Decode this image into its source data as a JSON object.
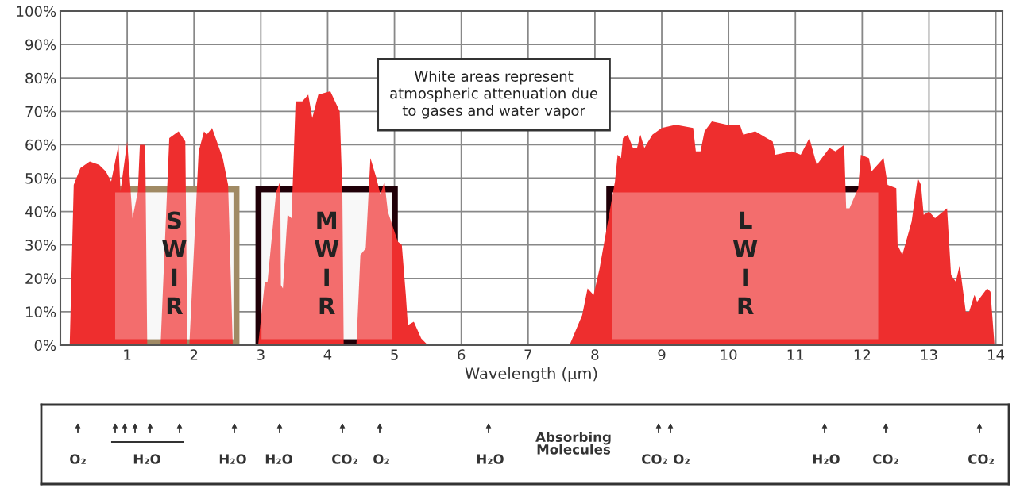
{
  "chart_data": [
    {
      "type": "area",
      "xlabel": "Wavelength (µm)",
      "color": "#ee2e2e",
      "x": [
        0.14,
        0.2,
        0.3,
        0.44,
        0.58,
        0.68,
        0.76,
        0.87,
        0.9,
        1.0,
        1.08,
        1.16,
        1.19,
        1.27,
        1.3,
        1.5,
        1.63,
        1.77,
        1.87,
        1.9,
        1.93,
        2.07,
        2.15,
        2.19,
        2.27,
        2.43,
        2.51,
        2.58,
        2.96,
        3.06,
        3.1,
        3.23,
        3.29,
        3.3,
        3.33,
        3.4,
        3.46,
        3.52,
        3.62,
        3.71,
        3.77,
        3.86,
        4.04,
        4.18,
        4.22,
        4.24,
        4.43,
        4.49,
        4.57,
        4.64,
        4.73,
        4.79,
        4.85,
        4.9,
        5.05,
        5.11,
        5.17,
        5.2,
        5.29,
        5.4,
        5.5,
        7.62,
        7.81,
        7.89,
        7.98,
        8.07,
        8.3,
        8.34,
        8.39,
        8.42,
        8.49,
        8.57,
        8.63,
        8.68,
        8.74,
        8.86,
        9.0,
        9.21,
        9.47,
        9.51,
        9.58,
        9.64,
        9.75,
        9.98,
        10.17,
        10.22,
        10.4,
        10.57,
        10.66,
        10.7,
        10.95,
        11.08,
        11.21,
        11.32,
        11.51,
        11.6,
        11.73,
        11.76,
        11.81,
        11.94,
        11.98,
        12.1,
        12.14,
        12.32,
        12.38,
        12.51,
        12.53,
        12.6,
        12.74,
        12.83,
        12.88,
        12.92,
        13.0,
        13.09,
        13.27,
        13.33,
        13.4,
        13.46,
        13.55,
        13.6,
        13.68,
        13.72,
        13.87,
        13.92,
        13.98
      ],
      "values": [
        0,
        48,
        53,
        55,
        54,
        52,
        49,
        60,
        46,
        61,
        38,
        46,
        60,
        60,
        0,
        0,
        62,
        64,
        61,
        0,
        0,
        58,
        64,
        63,
        65,
        56,
        48,
        0,
        0,
        19,
        19,
        46,
        49,
        18,
        17,
        39,
        38,
        73,
        73,
        75,
        68,
        75,
        76,
        70,
        46,
        0,
        0,
        27,
        29,
        56,
        50,
        45,
        49,
        40,
        31,
        30,
        15,
        6,
        7,
        2,
        0,
        0,
        9,
        17,
        15,
        23,
        49,
        57,
        56,
        62,
        63,
        59,
        59,
        63,
        59,
        63,
        65,
        66,
        65,
        58,
        58,
        64,
        67,
        66,
        66,
        63,
        64,
        62,
        61,
        57,
        58,
        57,
        62,
        54,
        59,
        58,
        60,
        41,
        41,
        47,
        57,
        56,
        52,
        56,
        48,
        47,
        30,
        27,
        37,
        50,
        48,
        39,
        40,
        38,
        41,
        21,
        19,
        24,
        10,
        10,
        15,
        13,
        17,
        16,
        0
      ],
      "xlim": [
        0,
        14.1
      ],
      "xticks": [
        1,
        2,
        3,
        4,
        5,
        6,
        7,
        8,
        9,
        10,
        11,
        12,
        13,
        14
      ],
      "ylim": [
        0,
        100
      ],
      "yticks": [
        {
          "value": 0,
          "label": "0%"
        },
        {
          "value": 10,
          "label": "10%"
        },
        {
          "value": 20,
          "label": "20%"
        },
        {
          "value": 30,
          "label": "30%"
        },
        {
          "value": 40,
          "label": "40%"
        },
        {
          "value": 50,
          "label": "50%"
        },
        {
          "value": 60,
          "label": "60%"
        },
        {
          "value": 70,
          "label": "70%"
        },
        {
          "value": 80,
          "label": "80%"
        },
        {
          "value": 90,
          "label": "90%"
        },
        {
          "value": 100,
          "label": "100%"
        }
      ],
      "grid": true,
      "bands": [
        {
          "axis": "x",
          "from": 0.73,
          "to": 2.68,
          "label": "SWIR",
          "color": "#a08a64"
        },
        {
          "axis": "x",
          "from": 2.92,
          "to": 5.05,
          "label": "MWIR",
          "color": "#200008"
        },
        {
          "axis": "x",
          "from": 8.17,
          "to": 12.33,
          "label": "LWIR",
          "color": "#200008"
        }
      ],
      "annotations": [
        "White areas represent atmospheric attenuation due to gases and water vapor"
      ]
    },
    {
      "type": "other",
      "annotations": [
        "O₂",
        "H₂O",
        "H₂O",
        "H₂O",
        "CO₂",
        "O₂",
        "H₂O",
        "Absorbing\nMolecules",
        "CO₂",
        "O₂",
        "H₂O",
        "CO₂",
        "CO₂"
      ]
    }
  ]
}
